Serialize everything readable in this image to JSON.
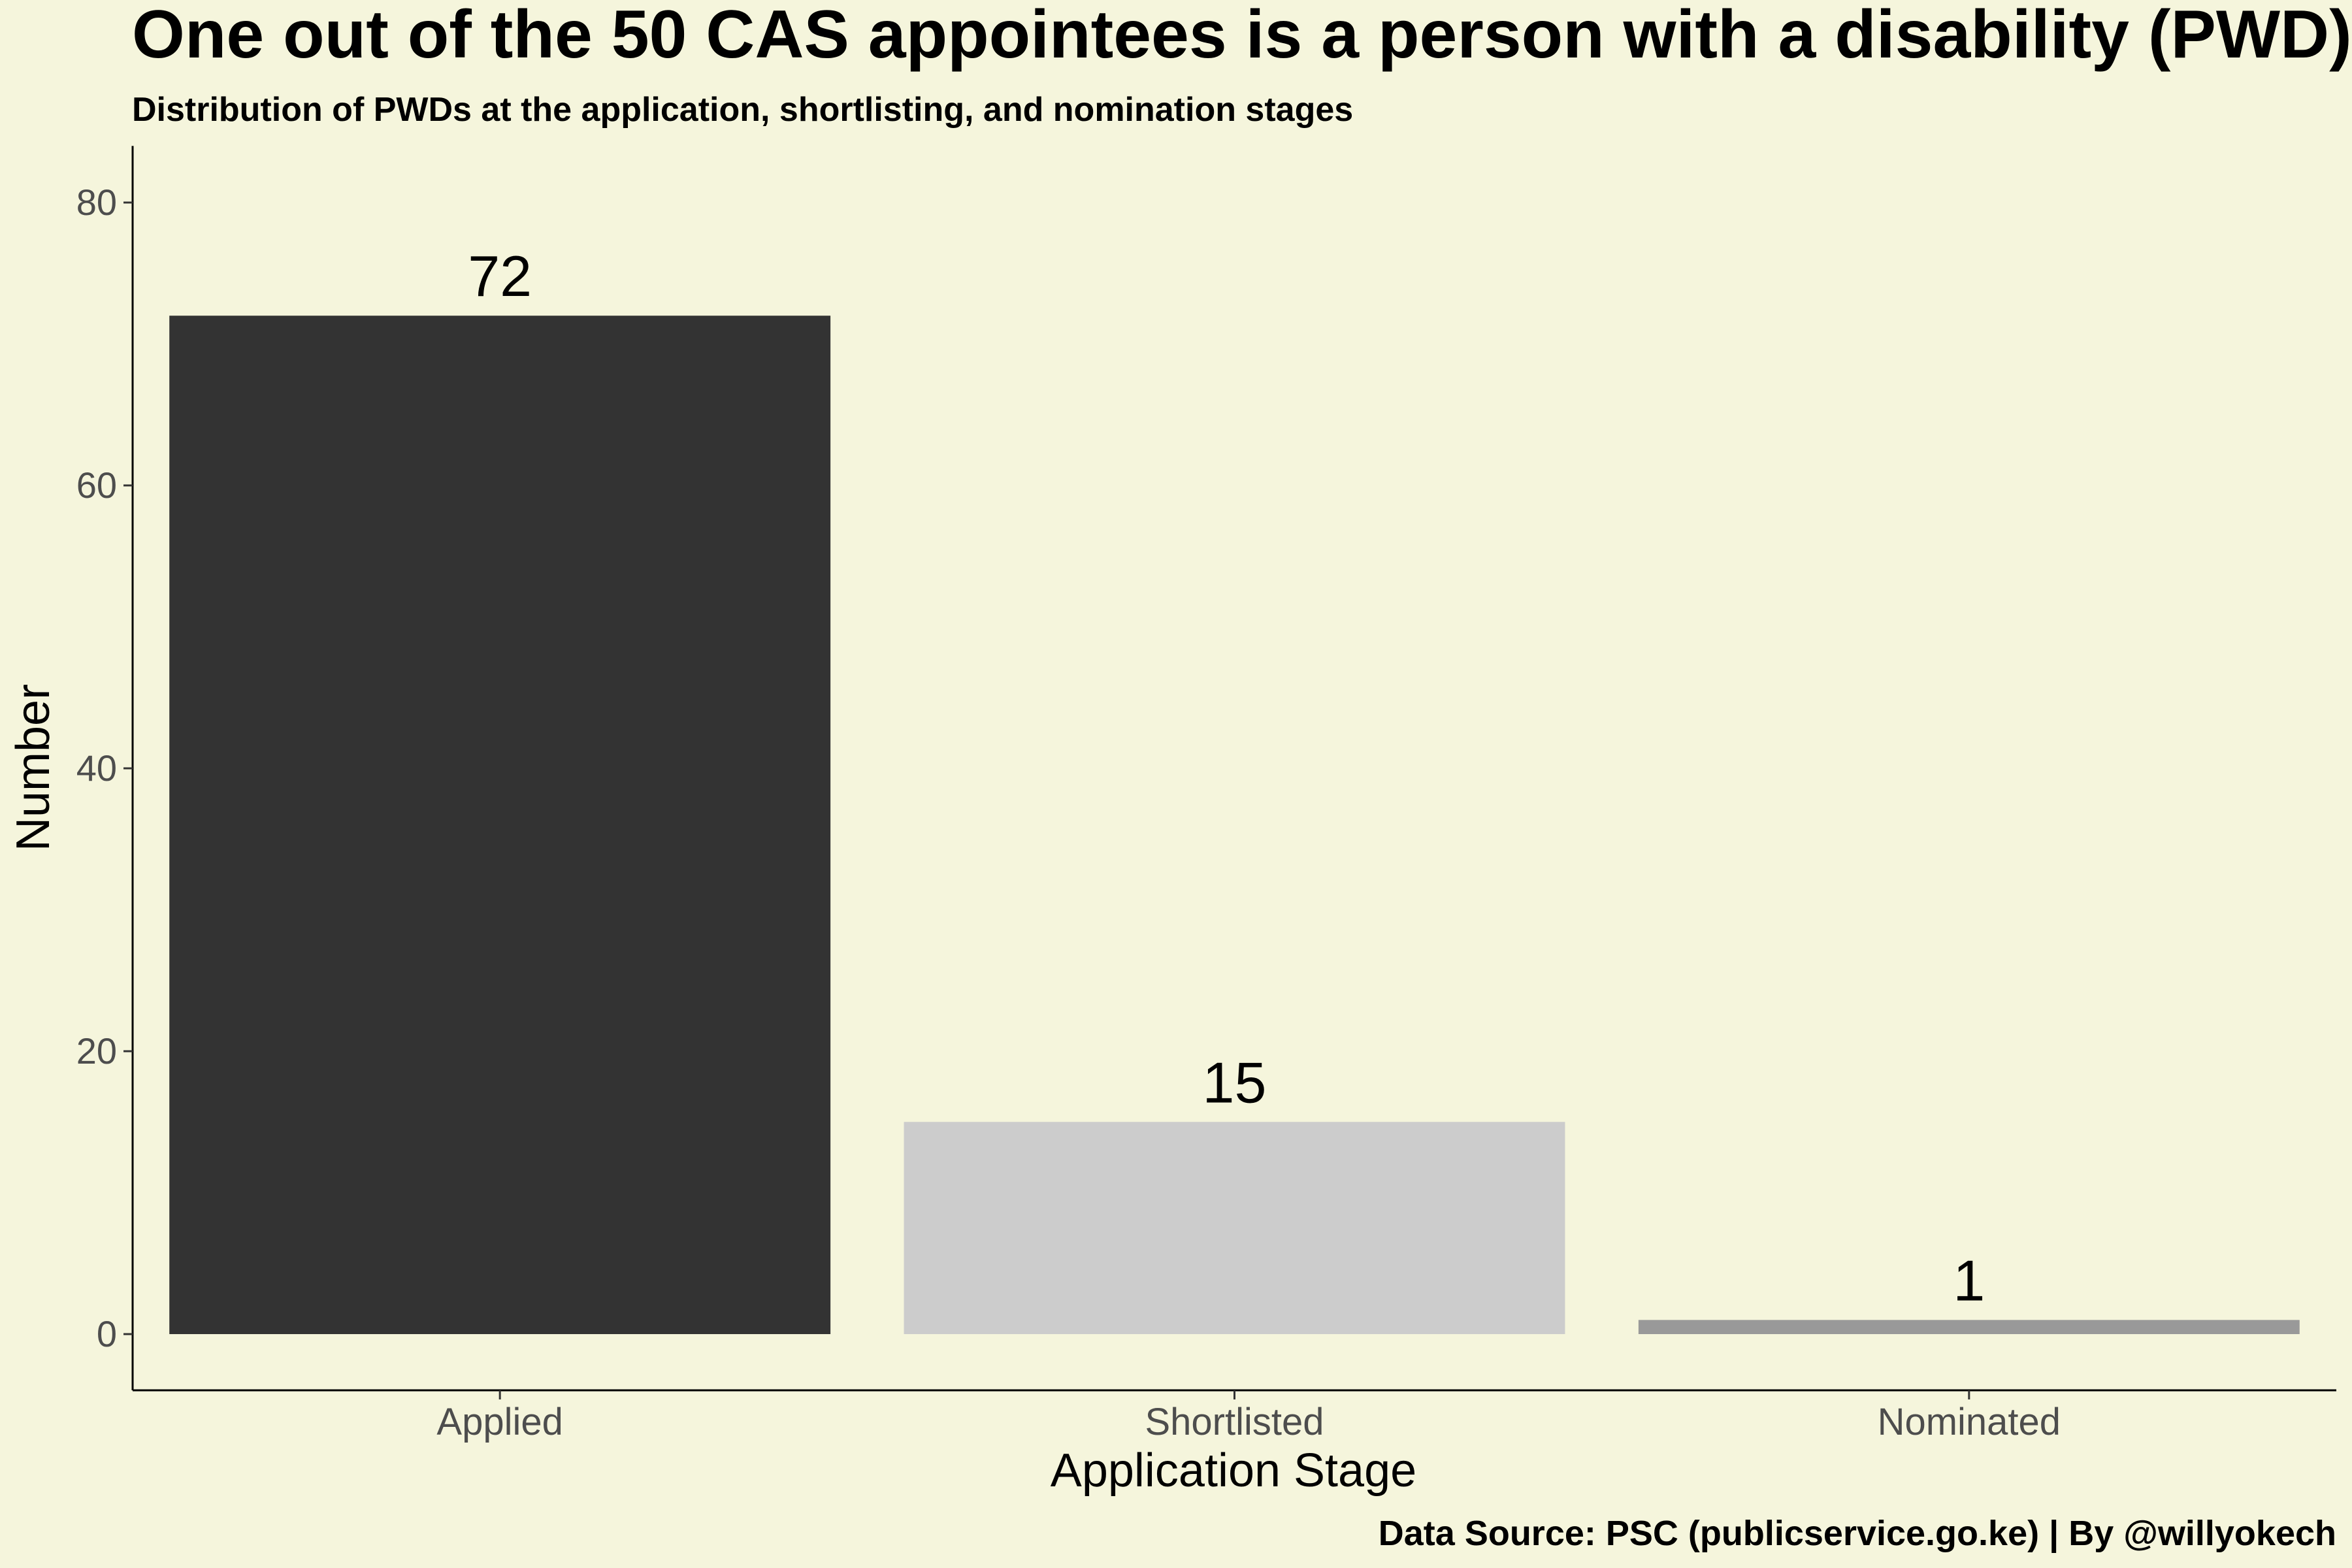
{
  "chart_data": {
    "type": "bar",
    "title": "One out of the 50 CAS appointees is a person with a disability (PWD)",
    "subtitle": "Distribution of PWDs at the application, shortlisting, and nomination stages",
    "caption": "Data Source: PSC (publicservice.go.ke) | By @willyokech",
    "xlabel": "Application Stage",
    "ylabel": "Number",
    "categories": [
      "Applied",
      "Shortlisted",
      "Nominated"
    ],
    "values": [
      72,
      15,
      1
    ],
    "bar_colors": [
      "#333333",
      "#cccccc",
      "#999999"
    ],
    "ylim": [
      0,
      84
    ],
    "yticks": [
      0,
      20,
      40,
      60,
      80
    ],
    "grid": false,
    "legend": "none",
    "background": "#f5f5dc"
  }
}
